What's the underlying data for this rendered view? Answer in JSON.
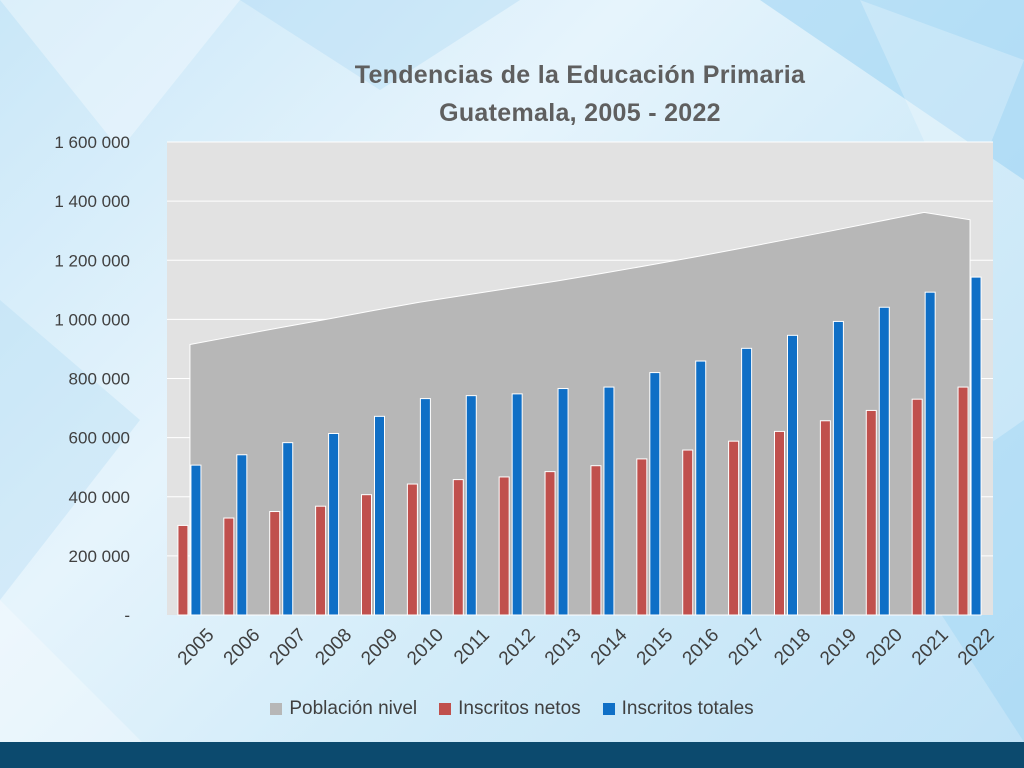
{
  "colors": {
    "poblacion": "#b7b7b7",
    "netos": "#c0504d",
    "totales": "#0f6fc6",
    "plot_bg": "#e2e2e2",
    "footer": "#0c4a6e"
  },
  "chart_data": {
    "type": "bar",
    "title_line1": "Tendencias de la Educación Primaria",
    "title_line2": "Guatemala, 2005 - 2022",
    "categories": [
      "2005",
      "2006",
      "2007",
      "2008",
      "2009",
      "2010",
      "2011",
      "2012",
      "2013",
      "2014",
      "2015",
      "2016",
      "2017",
      "2018",
      "2019",
      "2020",
      "2021",
      "2022"
    ],
    "series": [
      {
        "name": "Población nivel",
        "kind": "area",
        "values": [
          915000,
          944000,
          973000,
          1001000,
          1030000,
          1058000,
          1082000,
          1106000,
          1130000,
          1156000,
          1183000,
          1211000,
          1240000,
          1270000,
          1300000,
          1331000,
          1362000,
          1337000
        ]
      },
      {
        "name": "Inscritos netos",
        "kind": "bar",
        "values": [
          303000,
          328000,
          350000,
          368000,
          407000,
          443000,
          458000,
          467000,
          485000,
          505000,
          528000,
          558000,
          588000,
          621000,
          657000,
          692000,
          730000,
          771000
        ]
      },
      {
        "name": "Inscritos totales",
        "kind": "bar",
        "values": [
          507000,
          542000,
          583000,
          614000,
          672000,
          732000,
          742000,
          748000,
          766000,
          771000,
          820000,
          859000,
          902000,
          946000,
          993000,
          1041000,
          1092000,
          1143000
        ]
      }
    ],
    "ylim": [
      0,
      1600000
    ],
    "yticks": [
      0,
      200000,
      400000,
      600000,
      800000,
      1000000,
      1200000,
      1400000,
      1600000
    ],
    "ytick_labels": [
      "-",
      "200 000",
      "400 000",
      "600 000",
      "800 000",
      "1 000 000",
      "1 200 000",
      "1 400 000",
      "1 600 000"
    ],
    "grid": true,
    "legend_position": "bottom"
  }
}
